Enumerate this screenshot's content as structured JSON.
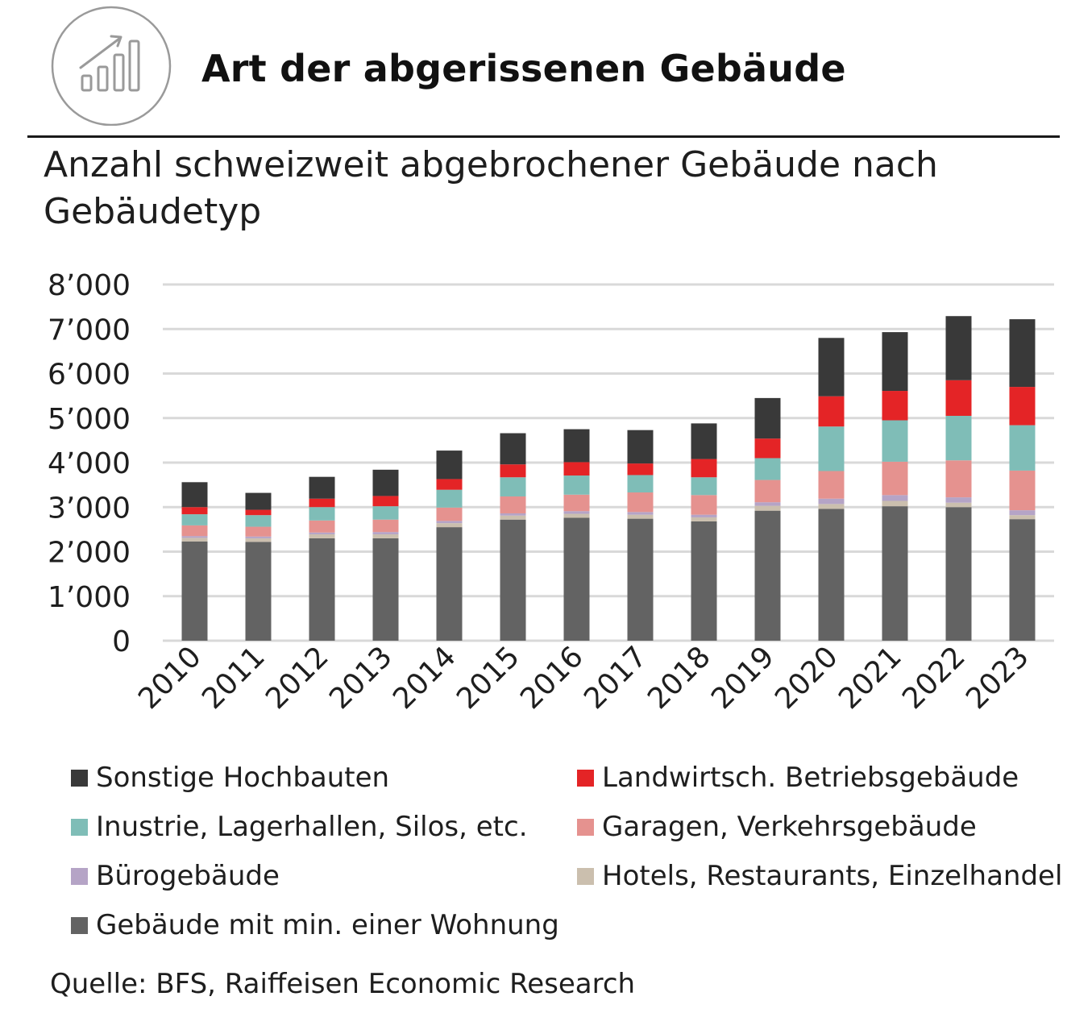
{
  "header": {
    "title": "Art der abgerissenen Gebäude",
    "icon": "bar-chart-growth-icon"
  },
  "subtitle": "Anzahl schweizweit abgebrochener Gebäude nach Gebäudetyp",
  "source": "Quelle: BFS, Raiffeisen Economic Research",
  "colors": {
    "gridline": "#d9d9d9",
    "axis_text": "#1e1e1e"
  },
  "chart_data": {
    "type": "bar",
    "stacked": true,
    "categories": [
      "2010",
      "2011",
      "2012",
      "2013",
      "2014",
      "2015",
      "2016",
      "2017",
      "2018",
      "2019",
      "2020",
      "2021",
      "2022",
      "2023"
    ],
    "ylim": [
      0,
      8000
    ],
    "yticks": [
      0,
      1000,
      2000,
      3000,
      4000,
      5000,
      6000,
      7000,
      8000
    ],
    "ytick_labels": [
      "0",
      "1’000",
      "2’000",
      "3’000",
      "4’000",
      "5’000",
      "6’000",
      "7’000",
      "8’000"
    ],
    "grid": true,
    "xlabel": "",
    "ylabel": "",
    "series": [
      {
        "name": "Gebäude mit min. einer Wohnung",
        "color": "#636363",
        "values": [
          2230,
          2220,
          2300,
          2300,
          2550,
          2720,
          2760,
          2740,
          2680,
          2920,
          2960,
          3020,
          3000,
          2730
        ]
      },
      {
        "name": "Hotels, Restaurants, Einzelhandel",
        "color": "#cbbfae",
        "values": [
          80,
          80,
          90,
          90,
          90,
          90,
          90,
          90,
          90,
          110,
          110,
          120,
          100,
          90
        ]
      },
      {
        "name": "Bürogebäude",
        "color": "#b5a4c6",
        "values": [
          40,
          40,
          40,
          50,
          50,
          50,
          60,
          60,
          60,
          80,
          120,
          130,
          120,
          110
        ]
      },
      {
        "name": "Garagen, Verkehrsgebäude",
        "color": "#e5928f",
        "values": [
          240,
          220,
          270,
          280,
          300,
          380,
          370,
          440,
          440,
          500,
          620,
          750,
          830,
          890
        ]
      },
      {
        "name": "Inustrie, Lagerhallen, Silos, etc.",
        "color": "#7fbdb7",
        "values": [
          250,
          260,
          300,
          300,
          400,
          430,
          430,
          390,
          400,
          490,
          1000,
          930,
          1000,
          1020
        ]
      },
      {
        "name": "Landwirtsch. Betriebsgebäude",
        "color": "#e42426",
        "values": [
          160,
          120,
          190,
          230,
          240,
          290,
          300,
          260,
          410,
          440,
          680,
          660,
          800,
          860
        ]
      },
      {
        "name": "Sonstige Hochbauten",
        "color": "#393939",
        "values": [
          560,
          380,
          490,
          590,
          640,
          700,
          740,
          750,
          800,
          910,
          1310,
          1320,
          1440,
          1520
        ]
      }
    ]
  },
  "legend": {
    "entries": [
      {
        "label": "Sonstige Hochbauten",
        "color": "#393939"
      },
      {
        "label": "Landwirtsch. Betriebsgebäude",
        "color": "#e42426"
      },
      {
        "label": "Inustrie, Lagerhallen, Silos, etc.",
        "color": "#7fbdb7"
      },
      {
        "label": "Garagen, Verkehrsgebäude",
        "color": "#e5928f"
      },
      {
        "label": "Bürogebäude",
        "color": "#b5a4c6"
      },
      {
        "label": "Hotels, Restaurants, Einzelhandel",
        "color": "#cbbfae"
      },
      {
        "label": "Gebäude mit min. einer Wohnung",
        "color": "#636363"
      }
    ]
  }
}
